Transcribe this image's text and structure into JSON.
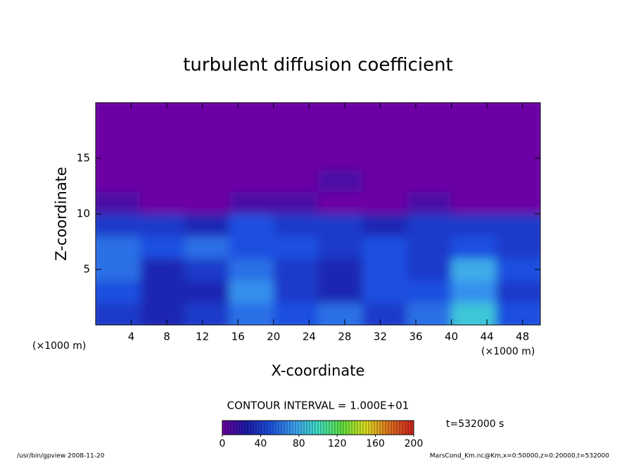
{
  "chart_data": {
    "type": "heatmap",
    "title": "turbulent diffusion coefficient",
    "xlabel": "X-coordinate",
    "ylabel": "Z-coordinate",
    "xunit": "(×1000 m)",
    "xlim": [
      0,
      50
    ],
    "ylim": [
      0,
      20
    ],
    "xticks": [
      4,
      8,
      12,
      16,
      20,
      24,
      28,
      32,
      36,
      40,
      44,
      48
    ],
    "yticks": [
      5,
      10,
      15
    ],
    "xbins": [
      0,
      5,
      10,
      15,
      20,
      25,
      30,
      35,
      40,
      45,
      50
    ],
    "ybins": [
      0,
      2,
      4,
      6,
      8,
      10,
      12,
      14,
      16,
      18,
      20
    ],
    "values": [
      [
        40,
        30,
        40,
        60,
        50,
        60,
        40,
        60,
        90,
        50
      ],
      [
        50,
        30,
        30,
        70,
        40,
        30,
        50,
        50,
        70,
        40
      ],
      [
        60,
        30,
        40,
        60,
        40,
        30,
        50,
        40,
        80,
        50
      ],
      [
        60,
        50,
        60,
        50,
        50,
        40,
        50,
        40,
        50,
        40
      ],
      [
        40,
        40,
        30,
        50,
        40,
        40,
        30,
        40,
        40,
        40
      ],
      [
        10,
        0,
        0,
        10,
        10,
        0,
        0,
        10,
        0,
        0
      ],
      [
        0,
        0,
        0,
        0,
        0,
        10,
        0,
        0,
        0,
        0
      ],
      [
        0,
        0,
        0,
        0,
        0,
        0,
        0,
        0,
        0,
        0
      ],
      [
        0,
        0,
        0,
        0,
        0,
        0,
        0,
        0,
        0,
        0
      ],
      [
        0,
        0,
        0,
        0,
        0,
        0,
        0,
        0,
        0,
        0
      ]
    ],
    "colormap": [
      "#6c00a4",
      "#1c1ca8",
      "#1e50e0",
      "#3ca0f0",
      "#40e0c8",
      "#60e040",
      "#e0e020",
      "#e07020",
      "#d02020"
    ],
    "contour_interval": "CONTOUR INTERVAL = 1.000E+01",
    "colorbar_lim": [
      0,
      200
    ],
    "colorbar_ticks": [
      0,
      40,
      80,
      120,
      160,
      200
    ],
    "time_label": "t=532000 s",
    "footer_left": "/usr/bin/gpview   2008-11-20",
    "footer_right": "MarsCond_Km.nc@Km,x=0:50000,z=0:20000,t=532000"
  }
}
